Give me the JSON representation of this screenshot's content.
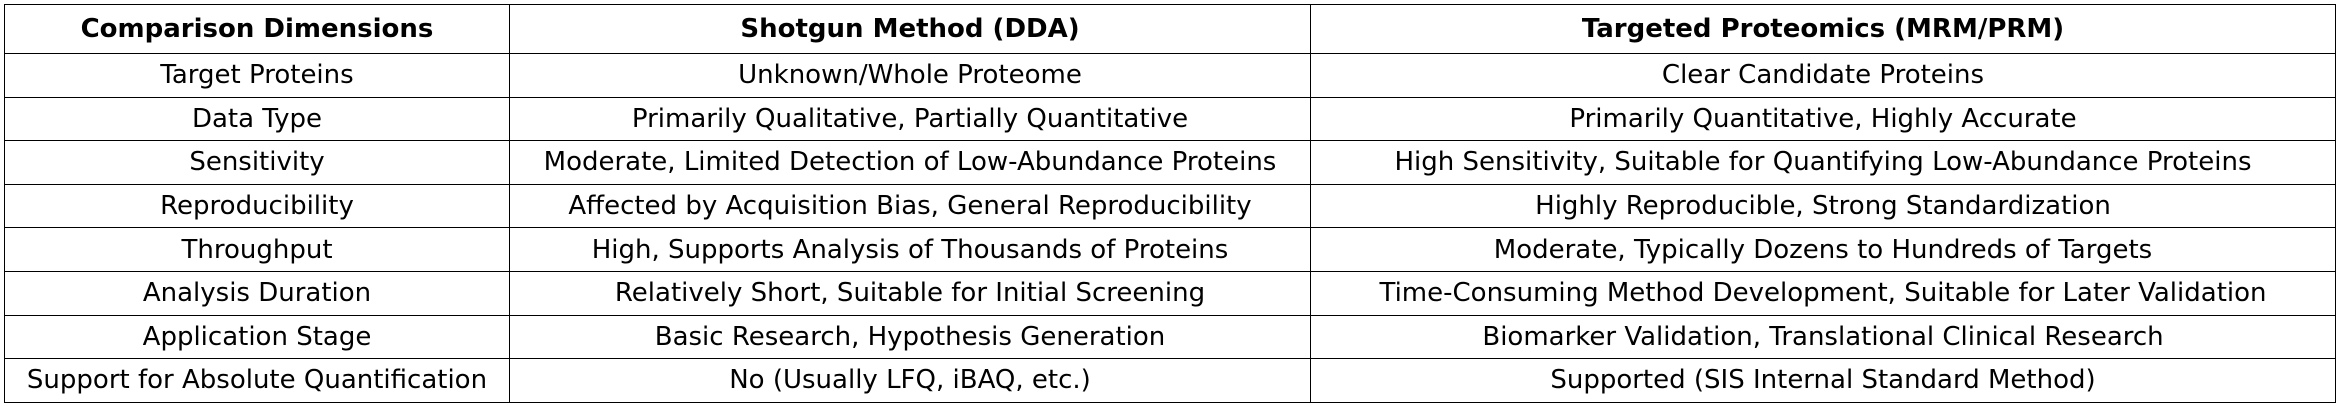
{
  "table": {
    "headers": [
      "Comparison Dimensions",
      "Shotgun Method (DDA)",
      "Targeted Proteomics (MRM/PRM)"
    ],
    "rows": [
      [
        "Target Proteins",
        "Unknown/Whole Proteome",
        "Clear Candidate Proteins"
      ],
      [
        "Data Type",
        "Primarily Qualitative, Partially Quantitative",
        "Primarily Quantitative, Highly Accurate"
      ],
      [
        "Sensitivity",
        "Moderate, Limited Detection of Low-Abundance Proteins",
        "High Sensitivity, Suitable for Quantifying Low-Abundance Proteins"
      ],
      [
        "Reproducibility",
        "Affected by Acquisition Bias, General Reproducibility",
        "Highly Reproducible, Strong Standardization"
      ],
      [
        "Throughput",
        "High, Supports Analysis of Thousands of Proteins",
        "Moderate, Typically Dozens to Hundreds of Targets"
      ],
      [
        "Analysis Duration",
        "Relatively Short, Suitable for Initial Screening",
        "Time-Consuming Method Development, Suitable for Later Validation"
      ],
      [
        "Application Stage",
        "Basic Research, Hypothesis Generation",
        "Biomarker Validation, Translational Clinical Research"
      ],
      [
        "Support for Absolute Quantification",
        "No (Usually LFQ, iBAQ, etc.)",
        "Supported (SIS Internal Standard Method)"
      ]
    ]
  }
}
